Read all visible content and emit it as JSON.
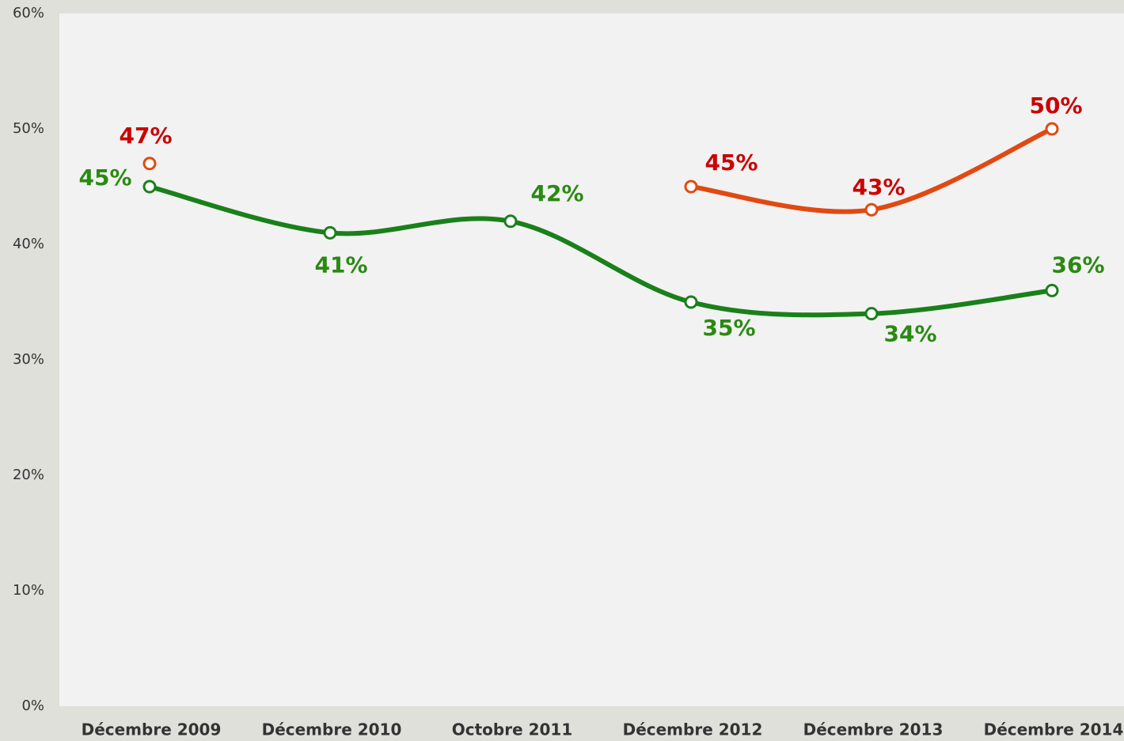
{
  "chart_data": {
    "type": "line",
    "categories": [
      "Décembre 2009",
      "Décembre 2010",
      "Octobre 2011",
      "Décembre 2012",
      "Décembre 2013",
      "Décembre 2014"
    ],
    "series": [
      {
        "color": "#1a801a",
        "label_color": "#2a8a12",
        "values": [
          45,
          41,
          42,
          35,
          34,
          36
        ],
        "value_labels": [
          "45%",
          "41%",
          "42%",
          "35%",
          "34%",
          "36%"
        ]
      },
      {
        "color": "#e04a12",
        "label_color": "#cc0000",
        "values": [
          47,
          null,
          null,
          45,
          43,
          50
        ],
        "value_labels": [
          "47%",
          null,
          null,
          "45%",
          "43%",
          "50%"
        ]
      }
    ],
    "ylim": [
      0,
      60
    ],
    "yticks": [
      {
        "value": 0,
        "label": "0%"
      },
      {
        "value": 10,
        "label": "10%"
      },
      {
        "value": 20,
        "label": "20%"
      },
      {
        "value": 30,
        "label": "30%"
      },
      {
        "value": 40,
        "label": "40%"
      },
      {
        "value": 50,
        "label": "50%"
      },
      {
        "value": 60,
        "label": "60%"
      }
    ],
    "smooth": true
  }
}
